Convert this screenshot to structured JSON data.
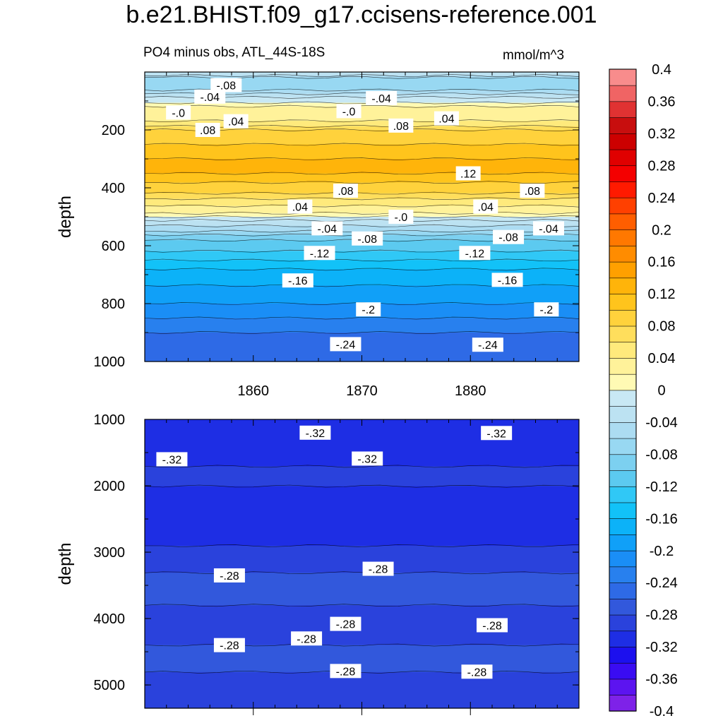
{
  "title": "b.e21.BHIST.f09_g17.ccisens-reference.001",
  "subtitle": "PO4 minus obs, ATL_44S-18S",
  "units": "mmol/m^3",
  "chart_data": {
    "type": "heatmap",
    "variable": "PO4 minus obs",
    "region": "ATL_44S-18S",
    "units": "mmol/m^3",
    "xlim": [
      1850,
      1890
    ],
    "x_ticks": [
      1860,
      1870,
      1880
    ],
    "x_tick_labels": [
      "1860",
      "1870",
      "1880"
    ],
    "colorbar": {
      "levels": [
        -0.4,
        -0.38,
        -0.36,
        -0.34,
        -0.32,
        -0.3,
        -0.28,
        -0.26,
        -0.24,
        -0.22,
        -0.2,
        -0.18,
        -0.16,
        -0.14,
        -0.12,
        -0.1,
        -0.08,
        -0.06,
        -0.04,
        -0.02,
        0,
        0.02,
        0.04,
        0.06,
        0.08,
        0.1,
        0.12,
        0.14,
        0.16,
        0.18,
        0.2,
        0.22,
        0.24,
        0.26,
        0.28,
        0.3,
        0.32,
        0.34,
        0.36,
        0.38,
        0.4
      ],
      "tick_labels": [
        "0.4",
        "0.36",
        "0.32",
        "0.28",
        "0.24",
        "0.2",
        "0.16",
        "0.12",
        "0.08",
        "0.04",
        "0",
        "-0.04",
        "-0.08",
        "-0.12",
        "-0.16",
        "-0.2",
        "-0.24",
        "-0.28",
        "-0.32",
        "-0.36",
        "-0.4"
      ],
      "tick_values": [
        0.4,
        0.36,
        0.32,
        0.28,
        0.24,
        0.2,
        0.16,
        0.12,
        0.08,
        0.04,
        0,
        -0.04,
        -0.08,
        -0.12,
        -0.16,
        -0.2,
        -0.24,
        -0.28,
        -0.32,
        -0.36,
        -0.4
      ],
      "colors": [
        "#7e22e8",
        "#5c14f0",
        "#3a0cf2",
        "#1c10ee",
        "#1e2ee4",
        "#2a42dc",
        "#3258dc",
        "#2e6ae6",
        "#2880ee",
        "#1a8ef6",
        "#10a0f8",
        "#0cb2f8",
        "#12c2f8",
        "#30c8f6",
        "#5ccaf0",
        "#7cd0f0",
        "#98d8f2",
        "#acdcf2",
        "#bce2f2",
        "#c8e8f4",
        "#fffab4",
        "#fff29a",
        "#ffea7c",
        "#ffde5c",
        "#ffd23c",
        "#ffc41c",
        "#ffb40a",
        "#ffa000",
        "#ff8c00",
        "#ff7800",
        "#ff5e00",
        "#ff4000",
        "#ff1a00",
        "#f40000",
        "#e00000",
        "#cc0000",
        "#c80e0e",
        "#e03232",
        "#f06464",
        "#f88c8c"
      ]
    },
    "panels": [
      {
        "name": "upper",
        "ylabel": "depth",
        "ylim": [
          1000,
          0
        ],
        "y_ticks": [
          200,
          400,
          600,
          800,
          1000
        ],
        "y_tick_labels": [
          "200",
          "400",
          "600",
          "800",
          "1000"
        ],
        "profile": [
          [
            0,
            -0.02
          ],
          [
            20,
            -0.06
          ],
          [
            45,
            -0.08
          ],
          [
            60,
            -0.06
          ],
          [
            90,
            -0.02
          ],
          [
            120,
            0.02
          ],
          [
            150,
            0.02
          ],
          [
            170,
            0.04
          ],
          [
            200,
            0.08
          ],
          [
            250,
            0.1
          ],
          [
            300,
            0.12
          ],
          [
            350,
            0.12
          ],
          [
            380,
            0.1
          ],
          [
            420,
            0.08
          ],
          [
            460,
            0.04
          ],
          [
            490,
            0.02
          ],
          [
            510,
            -0.02
          ],
          [
            550,
            -0.06
          ],
          [
            580,
            -0.1
          ],
          [
            620,
            -0.12
          ],
          [
            680,
            -0.16
          ],
          [
            740,
            -0.18
          ],
          [
            800,
            -0.2
          ],
          [
            850,
            -0.22
          ],
          [
            900,
            -0.24
          ],
          [
            950,
            -0.26
          ],
          [
            1000,
            -0.26
          ]
        ],
        "contour_labels": [
          {
            "text": "-.08",
            "x": 1857.5,
            "y": 45
          },
          {
            "text": "-.04",
            "x": 1856.0,
            "y": 85
          },
          {
            "text": "-.04",
            "x": 1871.8,
            "y": 90
          },
          {
            "text": "-.0",
            "x": 1853.1,
            "y": 140
          },
          {
            "text": "-.0",
            "x": 1868.8,
            "y": 135
          },
          {
            "text": ".04",
            "x": 1858.4,
            "y": 170
          },
          {
            "text": ".04",
            "x": 1877.8,
            "y": 160
          },
          {
            "text": ".08",
            "x": 1855.8,
            "y": 200
          },
          {
            "text": ".08",
            "x": 1873.6,
            "y": 185
          },
          {
            "text": ".12",
            "x": 1879.8,
            "y": 350
          },
          {
            "text": ".08",
            "x": 1868.5,
            "y": 410
          },
          {
            "text": ".08",
            "x": 1885.7,
            "y": 410
          },
          {
            "text": ".04",
            "x": 1864.3,
            "y": 465
          },
          {
            "text": ".04",
            "x": 1881.4,
            "y": 465
          },
          {
            "text": "-.0",
            "x": 1873.6,
            "y": 500
          },
          {
            "text": "-.04",
            "x": 1866.8,
            "y": 540
          },
          {
            "text": "-.04",
            "x": 1887.2,
            "y": 540
          },
          {
            "text": "-.08",
            "x": 1870.5,
            "y": 575
          },
          {
            "text": "-.08",
            "x": 1883.5,
            "y": 570
          },
          {
            "text": "-.12",
            "x": 1866.1,
            "y": 625
          },
          {
            "text": "-.12",
            "x": 1880.4,
            "y": 625
          },
          {
            "text": "-.16",
            "x": 1864.1,
            "y": 720
          },
          {
            "text": "-.16",
            "x": 1883.4,
            "y": 718
          },
          {
            "text": "-.2",
            "x": 1870.6,
            "y": 820
          },
          {
            "text": "-.2",
            "x": 1887.0,
            "y": 820
          },
          {
            "text": "-.24",
            "x": 1868.5,
            "y": 940
          },
          {
            "text": "-.24",
            "x": 1881.6,
            "y": 942
          }
        ]
      },
      {
        "name": "lower",
        "ylabel": "depth",
        "ylim": [
          5350,
          1000
        ],
        "y_ticks": [
          1000,
          2000,
          3000,
          4000,
          5000
        ],
        "y_tick_labels": [
          "1000",
          "2000",
          "3000",
          "4000",
          "5000"
        ],
        "profile": [
          [
            1000,
            -0.3
          ],
          [
            1200,
            -0.32
          ],
          [
            1500,
            -0.32
          ],
          [
            1700,
            -0.3
          ],
          [
            2000,
            -0.3
          ],
          [
            2200,
            -0.32
          ],
          [
            2700,
            -0.32
          ],
          [
            2900,
            -0.3
          ],
          [
            3300,
            -0.28
          ],
          [
            3800,
            -0.28
          ],
          [
            4100,
            -0.3
          ],
          [
            4400,
            -0.28
          ],
          [
            4800,
            -0.28
          ],
          [
            5000,
            -0.3
          ],
          [
            5350,
            -0.3
          ]
        ],
        "contour_labels": [
          {
            "text": "-.32",
            "x": 1865.7,
            "y": 1200
          },
          {
            "text": "-.32",
            "x": 1882.4,
            "y": 1205
          },
          {
            "text": "-.32",
            "x": 1852.5,
            "y": 1600
          },
          {
            "text": "-.32",
            "x": 1870.5,
            "y": 1590
          },
          {
            "text": "-.28",
            "x": 1857.8,
            "y": 3350
          },
          {
            "text": "-.28",
            "x": 1871.5,
            "y": 3250
          },
          {
            "text": "-.28",
            "x": 1868.5,
            "y": 4080
          },
          {
            "text": "-.28",
            "x": 1882.0,
            "y": 4100
          },
          {
            "text": "-.28",
            "x": 1857.8,
            "y": 4400
          },
          {
            "text": "-.28",
            "x": 1864.9,
            "y": 4300
          },
          {
            "text": "-.28",
            "x": 1868.5,
            "y": 4790
          },
          {
            "text": "-.28",
            "x": 1880.6,
            "y": 4800
          }
        ]
      }
    ]
  }
}
